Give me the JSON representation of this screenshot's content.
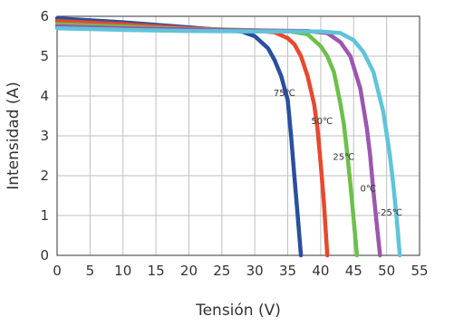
{
  "chart_data": {
    "type": "line",
    "title": "",
    "xlabel": "Tensión (V)",
    "ylabel": "Intensidad (A)",
    "xlim": [
      0,
      55
    ],
    "ylim": [
      0,
      6
    ],
    "xticks": [
      "0",
      "5",
      "10",
      "15",
      "20",
      "25",
      "30",
      "35",
      "40",
      "45",
      "50",
      "55"
    ],
    "yticks": [
      "0",
      "1",
      "2",
      "3",
      "4",
      "5",
      "6"
    ],
    "grid": true,
    "series": [
      {
        "name": "75℃",
        "color": "#2a4fa0",
        "x": [
          0,
          10,
          20,
          28,
          30,
          32,
          33,
          34,
          35,
          35.5,
          36,
          36.5,
          37
        ],
        "y": [
          5.95,
          5.85,
          5.72,
          5.62,
          5.5,
          5.2,
          4.9,
          4.5,
          3.9,
          3.0,
          2.0,
          1.0,
          0
        ]
      },
      {
        "name": "50℃",
        "color": "#e8482c",
        "x": [
          0,
          10,
          20,
          30,
          33,
          35,
          36,
          37,
          38,
          39,
          39.5,
          40,
          40.5,
          41
        ],
        "y": [
          5.88,
          5.8,
          5.7,
          5.64,
          5.6,
          5.45,
          5.3,
          5.0,
          4.5,
          3.8,
          3.2,
          2.3,
          1.3,
          0
        ]
      },
      {
        "name": "25℃",
        "color": "#6cc04a",
        "x": [
          0,
          10,
          20,
          30,
          35,
          38,
          40,
          41,
          42,
          43,
          43.5,
          44,
          44.5,
          45,
          45.5
        ],
        "y": [
          5.8,
          5.74,
          5.68,
          5.65,
          5.63,
          5.55,
          5.25,
          5.0,
          4.6,
          3.8,
          3.3,
          2.6,
          1.8,
          0.9,
          0
        ]
      },
      {
        "name": "0℃",
        "color": "#9b57b0",
        "x": [
          0,
          10,
          20,
          30,
          38,
          41,
          43,
          44.5,
          46,
          47,
          47.5,
          48,
          48.5,
          49
        ],
        "y": [
          5.75,
          5.7,
          5.67,
          5.64,
          5.63,
          5.58,
          5.35,
          5.0,
          4.2,
          3.2,
          2.5,
          1.6,
          0.8,
          0
        ]
      },
      {
        "name": "-25℃",
        "color": "#5fc4da",
        "x": [
          0,
          10,
          20,
          30,
          40,
          43,
          45,
          46.5,
          48,
          49.5,
          50.5,
          51,
          51.5,
          52
        ],
        "y": [
          5.7,
          5.66,
          5.63,
          5.62,
          5.62,
          5.58,
          5.4,
          5.1,
          4.6,
          3.6,
          2.5,
          1.8,
          1.0,
          0
        ]
      }
    ]
  }
}
